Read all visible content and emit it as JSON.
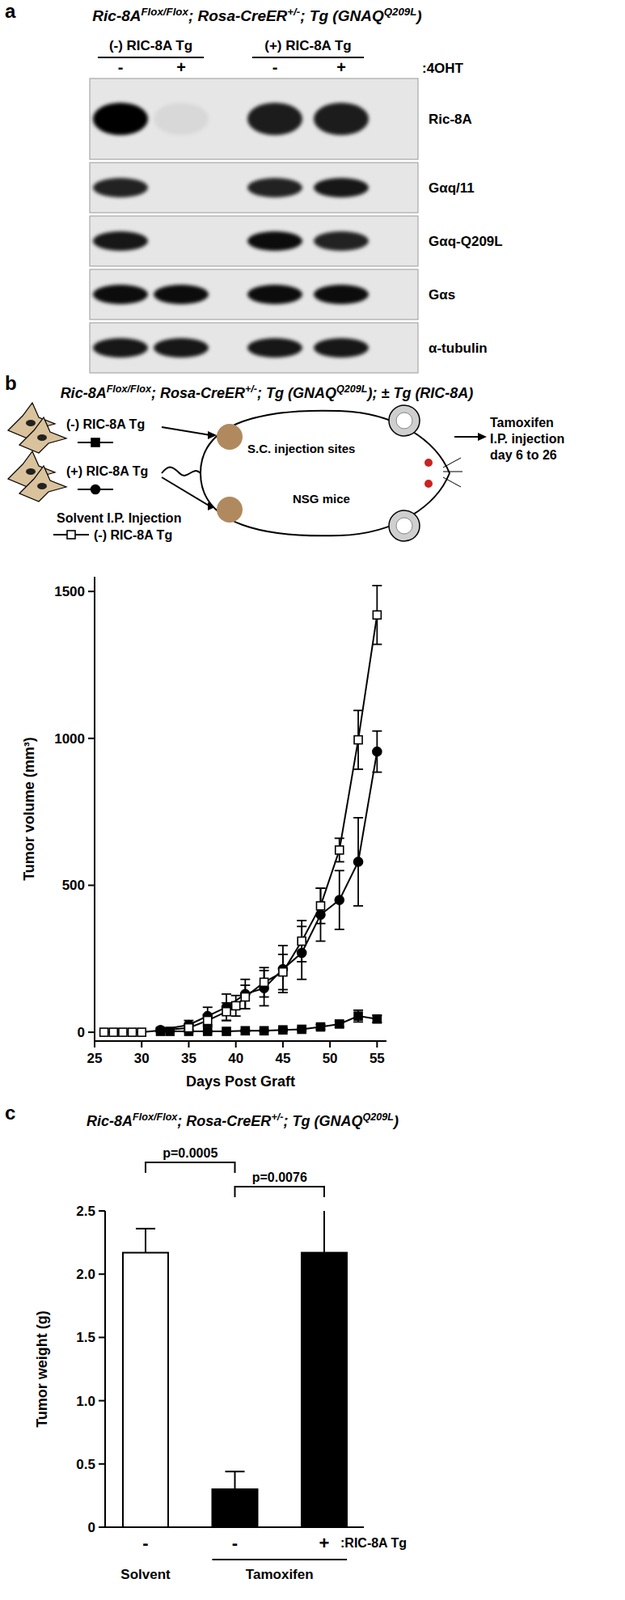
{
  "panel_labels": [
    "a",
    "b",
    "c"
  ],
  "blot": {
    "title": [
      {
        "text": "Ric-8A"
      },
      {
        "text": "Flox/Flox",
        "sup": true
      },
      {
        "text": "; Rosa-CreER"
      },
      {
        "text": "+/-",
        "sup": true
      },
      {
        "text": "; Tg (GNAQ"
      },
      {
        "text": "Q209L",
        "sup": true
      },
      {
        "text": ")"
      }
    ],
    "groups": [
      {
        "label": "(-) RIC-8A Tg",
        "lanes": [
          "-",
          "+"
        ]
      },
      {
        "label": "(+) RIC-8A Tg",
        "lanes": [
          "-",
          "+"
        ]
      }
    ],
    "treatment": ":4OHT",
    "rows": [
      {
        "label": "Ric-8A",
        "intensities": [
          1,
          0.06,
          0.88,
          0.88
        ]
      },
      {
        "label": "Gαq/11",
        "intensities": [
          0.85,
          0,
          0.85,
          0.9
        ]
      },
      {
        "label": "Gαq-Q209L",
        "intensities": [
          0.9,
          0,
          0.95,
          0.85
        ]
      },
      {
        "label": "Gαs",
        "intensities": [
          0.95,
          0.95,
          0.95,
          0.95
        ]
      },
      {
        "label": "α-tubulin",
        "intensities": [
          0.9,
          0.9,
          0.9,
          0.9
        ]
      }
    ]
  },
  "schematic": {
    "site_label": "S.C. injection sites",
    "mouse_label": "NSG mice",
    "treatment_lines": [
      "Tamoxifen",
      "I.P. injection",
      "day 6 to 26"
    ],
    "solvent_label": "Solvent I.P. Injection"
  },
  "chart_data": [
    {
      "type": "line",
      "title": [
        {
          "text": "Ric-8A"
        },
        {
          "text": "Flox/Flox",
          "sup": true
        },
        {
          "text": "; Rosa-CreER"
        },
        {
          "text": "+/-",
          "sup": true
        },
        {
          "text": "; Tg (GNAQ"
        },
        {
          "text": "Q209L",
          "sup": true
        },
        {
          "text": "); ± Tg (RIC-8A)"
        }
      ],
      "x_label": "Days Post Graft",
      "y_label": "Tumor volume (mm³)",
      "xlim": [
        25,
        56
      ],
      "xticks": [
        25,
        30,
        35,
        40,
        45,
        50,
        55
      ],
      "ylim": [
        -30,
        1550
      ],
      "yticks": [
        0,
        500,
        1000,
        1500
      ],
      "series": [
        {
          "name": "(-) RIC-8A Tg",
          "color": "#000000",
          "marker": "square",
          "x": [
            32,
            33,
            35,
            37,
            39,
            41,
            43,
            45,
            47,
            49,
            51,
            53,
            55
          ],
          "values": [
            3,
            3,
            3,
            3,
            3,
            5,
            5,
            8,
            10,
            18,
            28,
            55,
            45
          ],
          "errors": [
            2,
            2,
            2,
            2,
            2,
            3,
            3,
            5,
            5,
            8,
            10,
            20,
            12
          ]
        },
        {
          "name": "(+) RIC-8A Tg",
          "color": "#000000",
          "marker": "circle",
          "x": [
            32,
            35,
            37,
            39,
            41,
            43,
            45,
            47,
            49,
            51,
            53,
            55
          ],
          "values": [
            8,
            25,
            55,
            85,
            130,
            150,
            215,
            270,
            400,
            450,
            580,
            955
          ],
          "errors": [
            5,
            15,
            30,
            45,
            50,
            60,
            80,
            90,
            90,
            100,
            150,
            70
          ]
        },
        {
          "name": "(-) RIC-8A Tg",
          "color": "#000000",
          "marker": "open_square",
          "x": [
            26,
            27,
            28,
            29,
            30,
            35,
            37,
            39,
            40,
            41,
            43,
            45,
            47,
            49,
            51,
            53,
            55
          ],
          "values": [
            0,
            0,
            0,
            0,
            0,
            15,
            40,
            70,
            90,
            120,
            170,
            205,
            310,
            430,
            620,
            995,
            1420
          ],
          "errors": [
            0,
            0,
            0,
            0,
            0,
            10,
            20,
            30,
            35,
            40,
            50,
            60,
            70,
            60,
            40,
            100,
            100
          ]
        }
      ]
    },
    {
      "type": "bar",
      "title": [
        {
          "text": "Ric-8A"
        },
        {
          "text": "Flox/Flox",
          "sup": true
        },
        {
          "text": "; Rosa-CreER"
        },
        {
          "text": "+/-",
          "sup": true
        },
        {
          "text": "; Tg (GNAQ"
        },
        {
          "text": "Q209L",
          "sup": true
        },
        {
          "text": ")"
        }
      ],
      "y_label": "Tumor weight  (g)",
      "categories": [
        "-",
        "-",
        "+"
      ],
      "category_axis_label": ":RIC-8A Tg",
      "groups": [
        {
          "label": "Solvent",
          "span": [
            0,
            0
          ]
        },
        {
          "label": "Tamoxifen",
          "span": [
            1,
            2
          ]
        }
      ],
      "values": [
        2.17,
        0.3,
        2.17
      ],
      "errors": [
        0.19,
        0.14,
        0.35
      ],
      "colors": [
        "#ffffff",
        "#000000",
        "#000000"
      ],
      "ylim": [
        0,
        2.5
      ],
      "yticks": [
        0,
        0.5,
        {
          "value": 1,
          "label": "1.0"
        },
        1.5,
        {
          "value": 2,
          "label": "2.0"
        },
        2.5
      ],
      "annotations": [
        {
          "text": "p=0.0005",
          "between": [
            0,
            1
          ]
        },
        {
          "text": "p=0.0076",
          "between": [
            1,
            2
          ]
        }
      ]
    }
  ]
}
